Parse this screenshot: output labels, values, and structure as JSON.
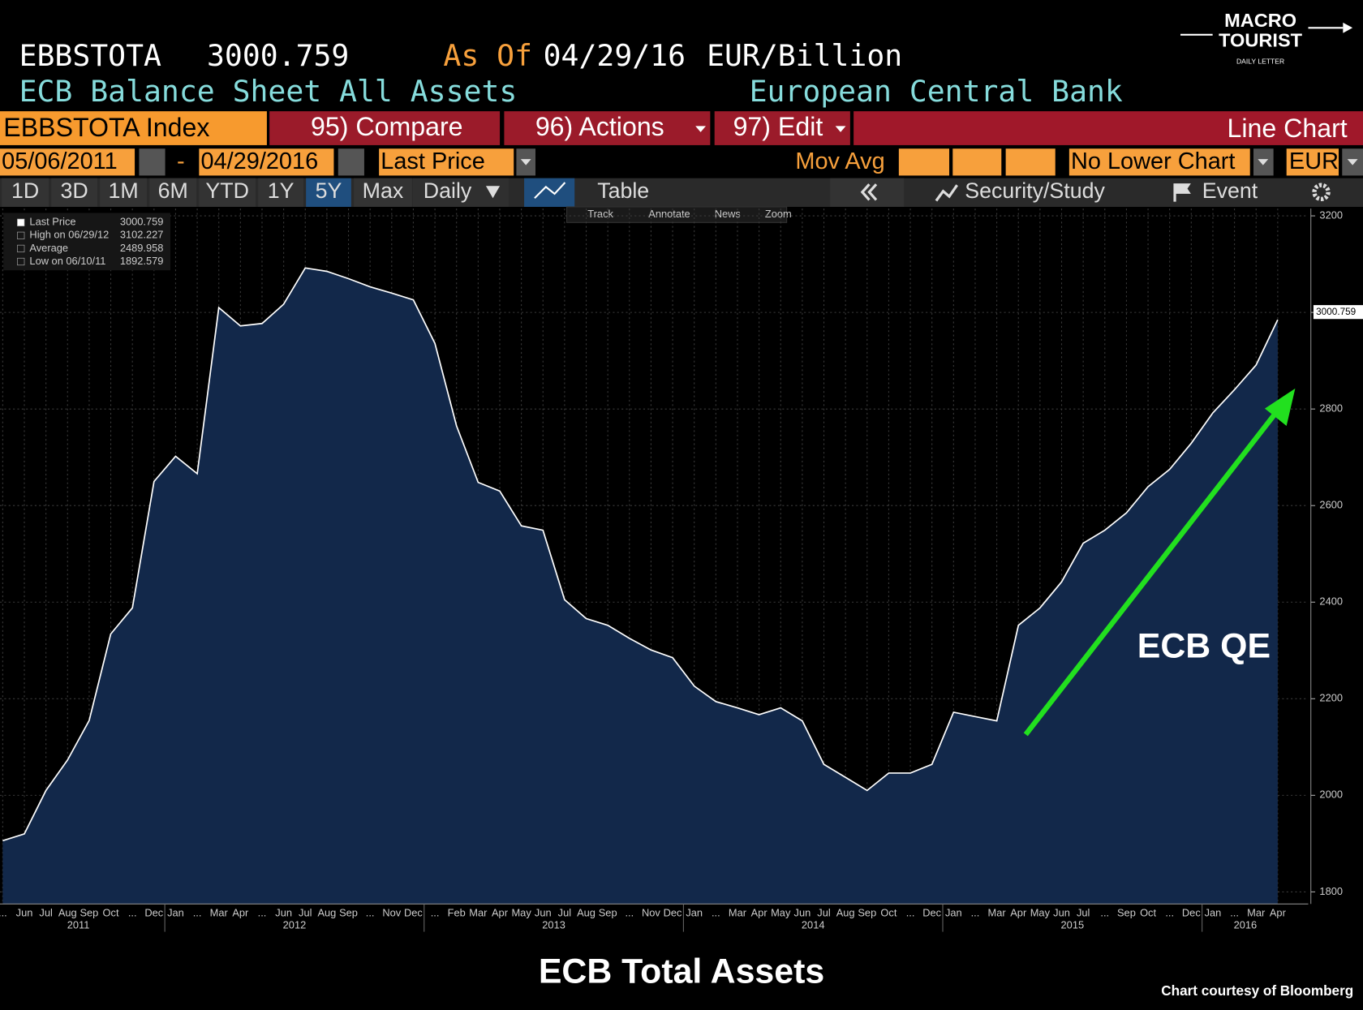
{
  "logo": {
    "line1": "MACRO",
    "line2": "TOURIST",
    "tagline": "DAILY LETTER"
  },
  "header": {
    "ticker": "EBBSTOTA",
    "price": "3000.759",
    "as_of": "As Of",
    "date": "04/29/16",
    "units": "EUR/Billion",
    "description": "ECB Balance Sheet All Assets",
    "source": "European Central Bank"
  },
  "toolbar": {
    "security": "EBBSTOTA Index",
    "compare": "95) Compare",
    "actions": "96) Actions",
    "edit": "97) Edit",
    "chart_kind": "Line Chart",
    "start_date": "05/06/2011",
    "dash": "-",
    "end_date": "04/29/2016",
    "field": "Last Price",
    "mov_avg": "Mov Avg",
    "lower_chart": "No Lower Chart",
    "currency": "EUR",
    "ranges": [
      "1D",
      "3D",
      "1M",
      "6M",
      "YTD",
      "1Y",
      "5Y",
      "Max"
    ],
    "active_range": "5Y",
    "period": "Daily",
    "table": "Table",
    "study": "Security/Study",
    "event": "Event",
    "tools": [
      "Track",
      "Annotate",
      "News",
      "Zoom"
    ]
  },
  "chart_data": {
    "type": "area",
    "title": "ECB Total Assets",
    "credit": "Chart courtesy of Bloomberg",
    "annotation": "ECB QE",
    "categories": [
      "...",
      "Jun",
      "Jul",
      "Aug",
      "Sep",
      "Oct",
      "...",
      "Dec",
      "Jan",
      "...",
      "Mar",
      "Apr",
      "...",
      "Jun",
      "Jul",
      "Aug",
      "Sep",
      "...",
      "Nov",
      "Dec",
      "...",
      "Feb",
      "Mar",
      "Apr",
      "May",
      "Jun",
      "Jul",
      "Aug",
      "Sep",
      "...",
      "Nov",
      "Dec",
      "Jan",
      "...",
      "Mar",
      "Apr",
      "May",
      "Jun",
      "Jul",
      "Aug",
      "Sep",
      "Oct",
      "...",
      "Dec",
      "Jan",
      "...",
      "Mar",
      "Apr",
      "May",
      "Jun",
      "Jul",
      "...",
      "Sep",
      "Oct",
      "...",
      "Dec",
      "Jan",
      "...",
      "Mar",
      "Apr"
    ],
    "years": [
      "2011",
      "2012",
      "2013",
      "2014",
      "2015",
      "2016"
    ],
    "series": [
      {
        "name": "Last Price",
        "color": "#ffffff",
        "fill": "#12284a",
        "values": [
          1906,
          1920,
          2010,
          2073,
          2155,
          2334,
          2388,
          2650,
          2702,
          2666,
          3010,
          2972,
          2977,
          3017,
          3092,
          3085,
          3070,
          3053,
          3040,
          3026,
          2936,
          2765,
          2648,
          2630,
          2558,
          2549,
          2405,
          2366,
          2352,
          2325,
          2301,
          2285,
          2226,
          2194,
          2181,
          2167,
          2181,
          2154,
          2064,
          2037,
          2010,
          2046,
          2046,
          2064,
          2172,
          2163,
          2154,
          2352,
          2388,
          2442,
          2522,
          2549,
          2585,
          2639,
          2675,
          2729,
          2792,
          2840,
          2891,
          2985
        ]
      }
    ],
    "stats": [
      {
        "label": "Last Price",
        "value": 3000.759
      },
      {
        "label": "High on 06/29/12",
        "value": 3102.227
      },
      {
        "label": "Average",
        "value": 2489.958
      },
      {
        "label": "Low on 06/10/11",
        "value": 1892.579
      }
    ],
    "ylim": [
      1775,
      3215
    ],
    "yticks": [
      1800,
      2000,
      2200,
      2400,
      2600,
      2800,
      3000,
      3200
    ],
    "y_axis_side": "right",
    "grid": true
  }
}
